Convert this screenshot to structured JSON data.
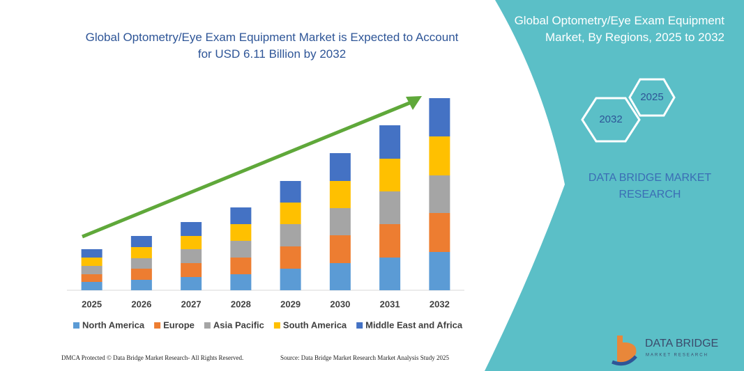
{
  "chart_data": {
    "type": "bar",
    "stacked": true,
    "title": "Global Optometry/Eye Exam Equipment Market is Expected to Account for USD 6.11 Billion by 2032",
    "categories": [
      "2025",
      "2026",
      "2027",
      "2028",
      "2029",
      "2030",
      "2031",
      "2032"
    ],
    "series": [
      {
        "name": "North America",
        "color": "#5b9bd5",
        "values": [
          12,
          15,
          19,
          23,
          31,
          39,
          47,
          55
        ]
      },
      {
        "name": "Europe",
        "color": "#ed7d31",
        "values": [
          11,
          16,
          20,
          24,
          32,
          40,
          48,
          56
        ]
      },
      {
        "name": "Asia Pacific",
        "color": "#a5a5a5",
        "values": [
          12,
          15,
          20,
          24,
          32,
          39,
          47,
          54
        ]
      },
      {
        "name": "South America",
        "color": "#ffc000",
        "values": [
          12,
          16,
          19,
          24,
          31,
          39,
          47,
          56
        ]
      },
      {
        "name": "Middle East and Africa",
        "color": "#4472c4",
        "values": [
          12,
          16,
          20,
          24,
          31,
          40,
          48,
          55
        ]
      }
    ],
    "ylim": [
      0,
      280
    ],
    "legend": "bottom"
  },
  "panel": {
    "title": "Global Optometry/Eye Exam Equipment Market, By Regions, 2025 to 2032",
    "hex_end": "2032",
    "hex_start": "2025",
    "brand": "DATA BRIDGE MARKET RESEARCH"
  },
  "logo": {
    "name": "DATA BRIDGE",
    "tagline": "MARKET RESEARCH"
  },
  "footer": {
    "left": "DMCA Protected © Data Bridge Market Research- All Rights Reserved.",
    "right": "Source: Data Bridge Market Research Market Analysis Study 2025"
  }
}
